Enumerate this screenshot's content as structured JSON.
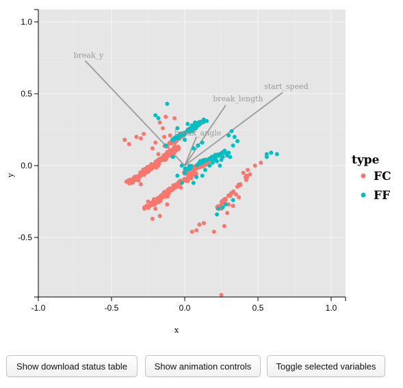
{
  "chart_data": {
    "type": "scatter",
    "xlabel": "x",
    "ylabel": "y",
    "xlim": [
      -1.0,
      1.0
    ],
    "ylim": [
      -0.9,
      1.08
    ],
    "xticks": [
      "-1.0",
      "-0.5",
      "0.0",
      "0.5",
      "1.0"
    ],
    "xtick_values": [
      -1.0,
      -0.5,
      0.0,
      0.5,
      1.0
    ],
    "yticks": [
      "-0.5",
      "0.0",
      "0.5",
      "1.0"
    ],
    "ytick_values": [
      -0.5,
      0.0,
      0.5,
      1.0
    ],
    "grid": true,
    "legend": {
      "title": "type",
      "placement": "right",
      "entries": [
        {
          "name": "FC",
          "color": "#F8766D"
        },
        {
          "name": "FF",
          "color": "#00BFC4"
        }
      ]
    },
    "axes_vectors": [
      {
        "name": "break_y",
        "x": -0.68,
        "y": 0.73
      },
      {
        "name": "break_length",
        "x": 0.28,
        "y": 0.42
      },
      {
        "name": "start_speed",
        "x": 0.67,
        "y": 0.51
      },
      {
        "name": "break_angle",
        "x": 0.08,
        "y": 0.2
      }
    ],
    "series": [
      {
        "name": "FC",
        "color": "#F8766D",
        "points": [
          [
            -0.41,
            0.18
          ],
          [
            -0.33,
            0.2
          ],
          [
            -0.3,
            0.19
          ],
          [
            -0.28,
            0.22
          ],
          [
            -0.38,
            0.15
          ],
          [
            -0.17,
            0.3
          ],
          [
            -0.13,
            0.34
          ],
          [
            -0.07,
            0.33
          ],
          [
            -0.1,
            0.21
          ],
          [
            -0.15,
            0.26
          ],
          [
            -0.2,
            0.16
          ],
          [
            -0.22,
            0.12
          ],
          [
            -0.14,
            0.2
          ],
          [
            -0.18,
            0.08
          ],
          [
            -0.12,
            0.14
          ],
          [
            -0.3,
            -0.13
          ],
          [
            -0.2,
            -0.3
          ],
          [
            -0.17,
            -0.35
          ],
          [
            -0.22,
            -0.37
          ],
          [
            -0.12,
            -0.27
          ],
          [
            0.1,
            -0.41
          ],
          [
            0.13,
            -0.4
          ],
          [
            0.2,
            -0.46
          ],
          [
            0.08,
            -0.45
          ],
          [
            0.27,
            -0.42
          ],
          [
            0.25,
            -0.3
          ],
          [
            0.3,
            -0.27
          ],
          [
            0.35,
            -0.2
          ],
          [
            0.38,
            -0.13
          ],
          [
            0.4,
            -0.05
          ],
          [
            0.43,
            -0.03
          ],
          [
            0.48,
            0.0
          ],
          [
            0.52,
            0.02
          ],
          [
            0.33,
            -0.28
          ],
          [
            0.29,
            -0.33
          ],
          [
            0.25,
            -1.15
          ],
          [
            0.05,
            -0.46
          ],
          [
            0.37,
            -0.22
          ],
          [
            0.42,
            -0.1
          ],
          [
            -0.25,
            -0.25
          ]
        ],
        "bands": [
          {
            "from": [
              -0.38,
              -0.12
            ],
            "to": [
              -0.05,
              0.12
            ],
            "n": 230,
            "spread": 0.03
          },
          {
            "from": [
              -0.27,
              -0.3
            ],
            "to": [
              0.08,
              -0.04
            ],
            "n": 130,
            "spread": 0.03
          },
          {
            "from": [
              0.0,
              -0.05
            ],
            "to": [
              0.19,
              0.04
            ],
            "n": 90,
            "spread": 0.025
          },
          {
            "from": [
              -0.13,
              0.13
            ],
            "to": [
              0.12,
              0.31
            ],
            "n": 60,
            "spread": 0.025
          },
          {
            "from": [
              0.22,
              -0.3
            ],
            "to": [
              0.44,
              -0.06
            ],
            "n": 35,
            "spread": 0.02
          }
        ]
      },
      {
        "name": "FF",
        "color": "#00BFC4",
        "points": [
          [
            -0.2,
            0.35
          ],
          [
            -0.12,
            0.43
          ],
          [
            -0.18,
            0.33
          ],
          [
            -0.05,
            0.26
          ],
          [
            0.0,
            0.23
          ],
          [
            0.02,
            0.29
          ],
          [
            0.05,
            0.28
          ],
          [
            0.07,
            0.3
          ],
          [
            0.1,
            0.3
          ],
          [
            0.13,
            0.32
          ],
          [
            0.3,
            0.21
          ],
          [
            0.32,
            0.24
          ],
          [
            0.34,
            0.2
          ],
          [
            0.36,
            0.17
          ],
          [
            0.33,
            0.14
          ],
          [
            0.29,
            0.07
          ],
          [
            0.26,
            0.06
          ],
          [
            0.3,
            0.09
          ],
          [
            0.25,
            0.04
          ],
          [
            0.22,
            0.03
          ],
          [
            0.56,
            0.08
          ],
          [
            0.59,
            0.09
          ],
          [
            0.63,
            0.08
          ],
          [
            0.56,
            0.06
          ],
          [
            0.23,
            -0.3
          ],
          [
            0.26,
            -0.29
          ],
          [
            0.28,
            -0.27
          ],
          [
            0.33,
            -0.24
          ],
          [
            0.22,
            -0.34
          ],
          [
            0.0,
            -0.05
          ],
          [
            0.03,
            -0.02
          ],
          [
            -0.02,
            0.0
          ],
          [
            -0.05,
            -0.07
          ],
          [
            0.08,
            -0.08
          ],
          [
            0.12,
            -0.07
          ],
          [
            0.17,
            0.0
          ],
          [
            0.19,
            0.02
          ],
          [
            0.21,
            0.04
          ],
          [
            0.14,
            -0.03
          ],
          [
            -0.08,
            0.06
          ],
          [
            0.05,
            0.24
          ],
          [
            0.08,
            0.27
          ],
          [
            0.15,
            0.31
          ],
          [
            -0.13,
            0.14
          ],
          [
            -0.04,
            0.2
          ],
          [
            0.0,
            0.18
          ],
          [
            0.06,
            0.12
          ],
          [
            0.09,
            0.14
          ],
          [
            0.12,
            0.16
          ],
          [
            0.27,
            0.1
          ],
          [
            0.31,
            0.06
          ],
          [
            0.24,
            0.0
          ],
          [
            0.06,
            -0.12
          ],
          [
            -0.02,
            -0.12
          ]
        ],
        "bands": [
          {
            "from": [
              0.0,
              -0.03
            ],
            "to": [
              0.28,
              0.1
            ],
            "n": 45,
            "spread": 0.02
          },
          {
            "from": [
              -0.08,
              0.18
            ],
            "to": [
              0.13,
              0.31
            ],
            "n": 35,
            "spread": 0.02
          }
        ]
      }
    ]
  },
  "buttons": {
    "download_status": "Show download status table",
    "animation_controls": "Show animation controls",
    "toggle_variables": "Toggle selected variables"
  }
}
